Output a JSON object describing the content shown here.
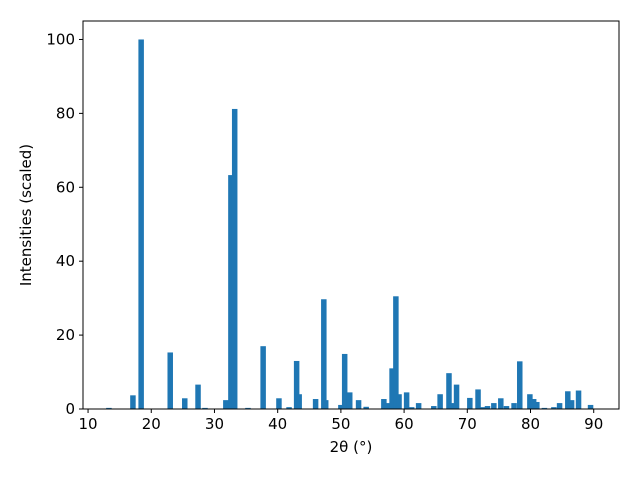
{
  "chart_data": {
    "type": "bar",
    "xlabel": "2θ (°)",
    "ylabel": "Intensities (scaled)",
    "color": "#1f77b4",
    "x": [
      13.3,
      17.1,
      18.4,
      23.0,
      25.3,
      27.4,
      28.5,
      31.8,
      32.6,
      33.2,
      35.3,
      37.7,
      40.2,
      41.8,
      43.0,
      43.4,
      46.0,
      47.3,
      47.6,
      50.0,
      50.6,
      51.4,
      52.8,
      54.0,
      56.8,
      57.4,
      58.1,
      58.7,
      59.2,
      60.4,
      61.2,
      62.3,
      64.7,
      65.7,
      67.1,
      67.5,
      68.3,
      70.4,
      71.7,
      72.5,
      73.2,
      74.2,
      75.3,
      76.2,
      77.4,
      78.3,
      79.9,
      80.5,
      81.0,
      82.2,
      83.7,
      84.6,
      85.9,
      86.5,
      87.6,
      89.5
    ],
    "values": [
      0.3,
      3.7,
      100,
      15.3,
      2.9,
      6.6,
      0.3,
      2.4,
      63.3,
      81.2,
      0.3,
      17,
      2.9,
      0.5,
      13,
      4,
      2.7,
      29.7,
      2.4,
      1.1,
      14.9,
      4.5,
      2.4,
      0.6,
      2.7,
      1.6,
      11,
      30.5,
      4,
      4.5,
      0.5,
      1.6,
      0.8,
      4,
      9.7,
      1.6,
      6.6,
      3,
      5.3,
      0.5,
      0.8,
      1.6,
      2.9,
      0.8,
      1.6,
      12.9,
      4,
      2.7,
      1.9,
      0.3,
      0.5,
      1.6,
      4.8,
      2.4,
      5,
      1.1
    ],
    "xlim": [
      9.2,
      94
    ],
    "ylim": [
      0,
      105
    ],
    "xticks": [
      10,
      20,
      30,
      40,
      50,
      60,
      70,
      80,
      90
    ],
    "yticks": [
      0,
      20,
      40,
      60,
      80,
      100
    ],
    "grid": false
  }
}
